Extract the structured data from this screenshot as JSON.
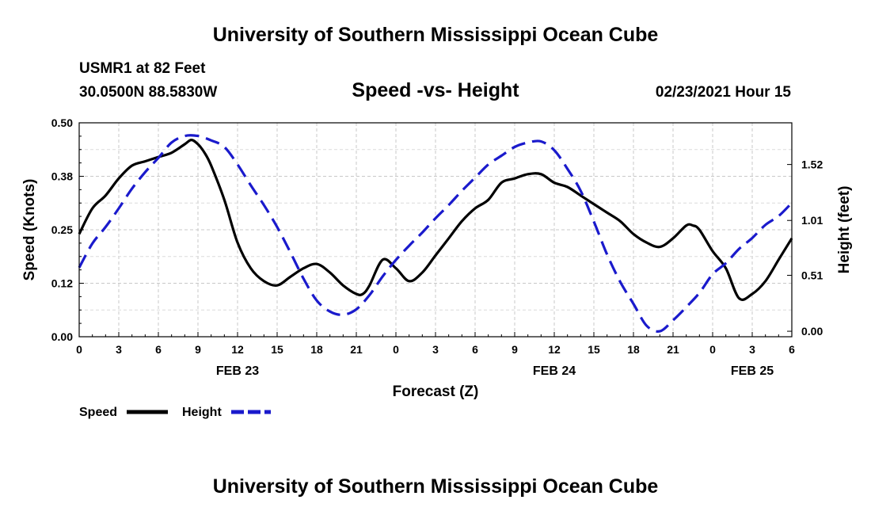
{
  "header": {
    "title": "University of Southern Mississippi Ocean Cube",
    "station": "USMR1 at 82 Feet",
    "coords": "30.0500N 88.5830W",
    "subtitle": "Speed -vs- Height",
    "datetime": "02/23/2021 Hour 15"
  },
  "footer": {
    "title": "University of Southern Mississippi Ocean Cube"
  },
  "chart_data": {
    "type": "line",
    "title": "Speed -vs- Height",
    "xlabel": "Forecast (Z)",
    "ylabel": "Speed (Knots)",
    "y2label": "Height (feet)",
    "x_tick_labels": [
      "0",
      "3",
      "6",
      "9",
      "12",
      "15",
      "18",
      "21",
      "0",
      "3",
      "6",
      "9",
      "12",
      "15",
      "18",
      "21",
      "0",
      "3",
      "6"
    ],
    "date_labels": [
      {
        "label": "FEB 23",
        "x": 12
      },
      {
        "label": "FEB 24",
        "x": 36
      },
      {
        "label": "FEB 25",
        "x": 51
      }
    ],
    "xlim": [
      0,
      54
    ],
    "ylim": [
      0,
      0.5
    ],
    "y2lim": [
      -0.05,
      1.9
    ],
    "y_ticks": [
      "0.00",
      "0.12",
      "0.25",
      "0.38",
      "0.50"
    ],
    "y2_ticks": [
      "0.00",
      "0.51",
      "1.01",
      "1.52"
    ],
    "grid": true,
    "legend_position": "bottom-left",
    "series": [
      {
        "name": "Speed",
        "axis": "left",
        "color": "#000000",
        "style": "solid",
        "x": [
          0,
          1,
          2,
          3,
          4,
          5,
          6,
          7,
          8,
          8.5,
          9,
          9.5,
          10,
          11,
          12,
          13,
          14,
          15,
          16,
          17,
          18,
          19,
          20,
          21,
          21.5,
          22,
          23,
          24,
          25,
          26,
          27,
          28,
          29,
          30,
          31,
          32,
          33,
          34,
          35,
          36,
          37,
          38,
          39,
          40,
          41,
          42,
          43,
          44,
          45,
          46,
          46.5,
          47,
          48,
          49,
          50,
          51,
          52,
          53,
          54
        ],
        "values": [
          0.24,
          0.3,
          0.33,
          0.37,
          0.4,
          0.41,
          0.42,
          0.43,
          0.45,
          0.46,
          0.45,
          0.43,
          0.4,
          0.32,
          0.22,
          0.16,
          0.13,
          0.12,
          0.14,
          0.16,
          0.17,
          0.15,
          0.12,
          0.1,
          0.1,
          0.12,
          0.18,
          0.16,
          0.13,
          0.15,
          0.19,
          0.23,
          0.27,
          0.3,
          0.32,
          0.36,
          0.37,
          0.38,
          0.38,
          0.36,
          0.35,
          0.33,
          0.31,
          0.29,
          0.27,
          0.24,
          0.22,
          0.21,
          0.23,
          0.26,
          0.26,
          0.25,
          0.2,
          0.16,
          0.09,
          0.1,
          0.13,
          0.18,
          0.23
        ]
      },
      {
        "name": "Height",
        "axis": "right",
        "color": "#1a1acc",
        "style": "dashed",
        "x": [
          0,
          1,
          2,
          3,
          4,
          5,
          6,
          7,
          8,
          9,
          10,
          11,
          12,
          13,
          14,
          15,
          16,
          17,
          18,
          19,
          20,
          21,
          22,
          23,
          24,
          25,
          26,
          27,
          28,
          29,
          30,
          31,
          32,
          33,
          34,
          35,
          36,
          37,
          38,
          39,
          40,
          41,
          42,
          43,
          44,
          45,
          46,
          47,
          48,
          49,
          50,
          51,
          52,
          53,
          54
        ],
        "values": [
          0.58,
          0.8,
          0.95,
          1.12,
          1.3,
          1.45,
          1.58,
          1.72,
          1.78,
          1.78,
          1.74,
          1.68,
          1.52,
          1.33,
          1.15,
          0.95,
          0.72,
          0.48,
          0.28,
          0.18,
          0.15,
          0.2,
          0.33,
          0.5,
          0.65,
          0.78,
          0.9,
          1.03,
          1.15,
          1.28,
          1.4,
          1.52,
          1.6,
          1.68,
          1.72,
          1.73,
          1.65,
          1.48,
          1.28,
          1.0,
          0.7,
          0.45,
          0.25,
          0.05,
          0.0,
          0.1,
          0.22,
          0.35,
          0.52,
          0.62,
          0.75,
          0.85,
          0.97,
          1.05,
          1.17
        ]
      }
    ]
  }
}
